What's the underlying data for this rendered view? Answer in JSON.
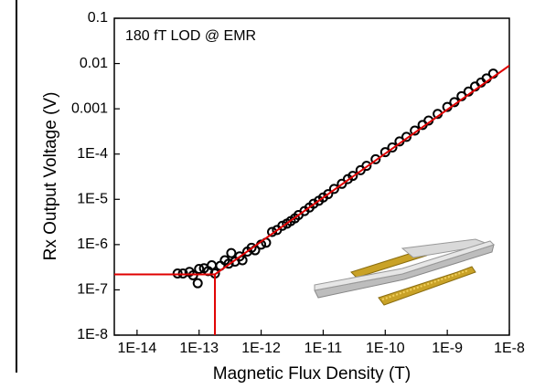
{
  "chart_data": {
    "type": "scatter",
    "annotation": "180 fT LOD @ EMR",
    "xlabel": "Magnetic Flux Density (T)",
    "ylabel": "Rx Output Voltage (V)",
    "log_x": true,
    "log_y": true,
    "xlim": [
      4.3e-15,
      1e-08
    ],
    "ylim": [
      1e-08,
      0.1
    ],
    "xticks": [
      {
        "value": 1e-14,
        "label": "1E-14"
      },
      {
        "value": 1e-13,
        "label": "1E-13"
      },
      {
        "value": 1e-12,
        "label": "1E-12"
      },
      {
        "value": 1e-11,
        "label": "1E-11"
      },
      {
        "value": 1e-10,
        "label": "1E-10"
      },
      {
        "value": 1e-09,
        "label": "1E-9"
      },
      {
        "value": 1e-08,
        "label": "1E-8"
      }
    ],
    "yticks": [
      {
        "value": 1e-08,
        "label": "1E-8"
      },
      {
        "value": 1e-07,
        "label": "1E-7"
      },
      {
        "value": 1e-06,
        "label": "1E-6"
      },
      {
        "value": 1e-05,
        "label": "1E-5"
      },
      {
        "value": 0.0001,
        "label": "1E-4"
      },
      0.001,
      0.01,
      0.1
    ],
    "marker_color": "#000000",
    "x": [
      4.5e-14,
      5.5e-14,
      7e-14,
      8e-14,
      9.5e-14,
      1e-13,
      1.2e-13,
      1.4e-13,
      1.6e-13,
      1.8e-13,
      2.2e-13,
      2.6e-13,
      3e-13,
      3.3e-13,
      3.8e-13,
      4.5e-13,
      5e-13,
      6e-13,
      7e-13,
      8e-13,
      1e-12,
      1.2e-12,
      1.5e-12,
      1.8e-12,
      2.2e-12,
      2.6e-12,
      3e-12,
      3.5e-12,
      4e-12,
      5e-12,
      6e-12,
      7e-12,
      8.5e-12,
      1e-11,
      1.2e-11,
      1.5e-11,
      2e-11,
      2.5e-11,
      3e-11,
      4e-11,
      5e-11,
      7e-11,
      1e-10,
      1.3e-10,
      1.7e-10,
      2.2e-10,
      3e-10,
      4e-10,
      5e-10,
      7e-10,
      1e-09,
      1.3e-09,
      1.7e-09,
      2.2e-09,
      2.8e-09,
      3.5e-09,
      4.3e-09,
      5.5e-09
    ],
    "values": [
      2.3e-07,
      2.3e-07,
      2.5e-07,
      2.1e-07,
      1.4e-07,
      2.9e-07,
      3e-07,
      2.6e-07,
      3.5e-07,
      2.3e-07,
      3.4e-07,
      4.5e-07,
      3.8e-07,
      6.5e-07,
      4.2e-07,
      5.5e-07,
      4.5e-07,
      7e-07,
      8.5e-07,
      7.5e-07,
      1e-06,
      1.1e-06,
      1.9e-06,
      2.1e-06,
      2.6e-06,
      2.9e-06,
      3.3e-06,
      3.8e-06,
      4.5e-06,
      5.5e-06,
      6.6e-06,
      8e-06,
      9.3e-06,
      1.1e-05,
      1.3e-05,
      1.7e-05,
      2.2e-05,
      2.8e-05,
      3.3e-05,
      4.4e-05,
      5.5e-05,
      7.7e-05,
      0.00011,
      0.00014,
      0.00019,
      0.00024,
      0.00033,
      0.00044,
      0.00055,
      0.00077,
      0.0011,
      0.0014,
      0.0019,
      0.0024,
      0.0031,
      0.0038,
      0.0047,
      0.006
    ],
    "fit": {
      "x": [
        1.8e-13,
        1e-08
      ],
      "values": [
        2.2e-07,
        0.009
      ],
      "color": "#e00000"
    },
    "lod": {
      "x": 1.8e-13,
      "y": 2.2e-07,
      "color": "#e00000"
    }
  }
}
